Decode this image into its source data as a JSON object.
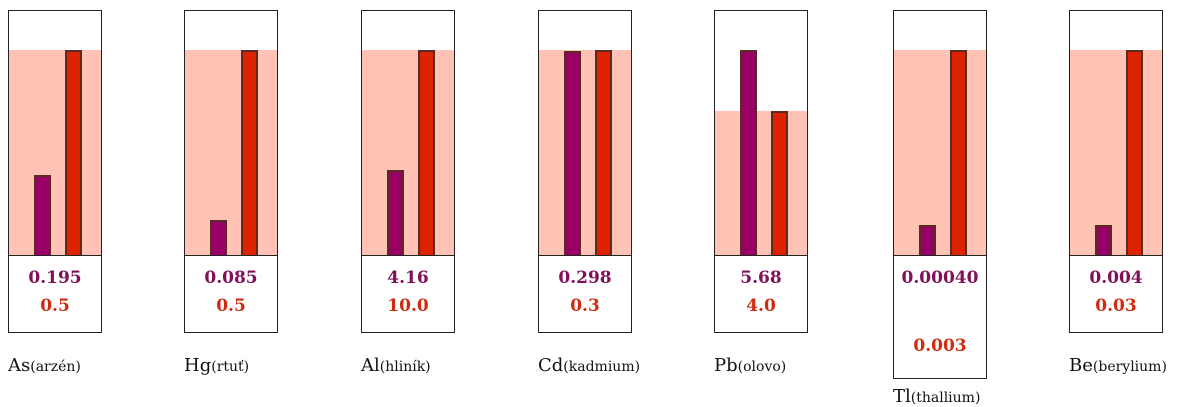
{
  "chart_data": {
    "type": "bar",
    "scale_note_values_are_relative_to_limit": false,
    "panels": [
      {
        "symbol": "As",
        "name": "(arzén)",
        "measured_label": "0.195",
        "limit_label": "0.5",
        "measured": 0.195,
        "limit": 0.5
      },
      {
        "symbol": "Hg",
        "name": "(rtuť)",
        "measured_label": "0.085",
        "limit_label": "0.5",
        "measured": 0.085,
        "limit": 0.5
      },
      {
        "symbol": "Al",
        "name": "(hliník)",
        "measured_label": "4.16",
        "limit_label": "10.0",
        "measured": 4.16,
        "limit": 10.0
      },
      {
        "symbol": "Cd",
        "name": "(kadmium)",
        "measured_label": "0.298",
        "limit_label": "0.3",
        "measured": 0.298,
        "limit": 0.3
      },
      {
        "symbol": "Pb",
        "name": "(olovo)",
        "measured_label": "5.68",
        "limit_label": "4.0",
        "measured": 5.68,
        "limit": 4.0
      },
      {
        "symbol": "Tl",
        "name": "(thallium)",
        "measured_label": "0.00040",
        "limit_label": "0.003",
        "measured": 0.0004,
        "limit": 0.003
      },
      {
        "symbol": "Be",
        "name": "(berylium)",
        "measured_label": "0.004",
        "limit_label": "0.03",
        "measured": 0.004,
        "limit": 0.03
      }
    ]
  },
  "colors": {
    "measured": "#990066",
    "limit": "#dd2200",
    "band": "#ffc2b4"
  }
}
